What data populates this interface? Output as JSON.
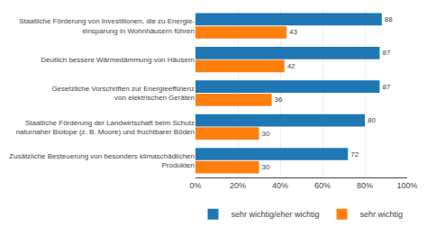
{
  "chart_data": {
    "type": "bar",
    "orientation": "horizontal",
    "categories": [
      "Staatliche Förderung von Investitionen, die zu Energie-\neinsparung in Wohnhäusern führen",
      "Deutlich bessere Wärmedämmung von Häusern",
      "Gesetzliche Vorschriften zur Energieeffizienz\nvon elektrischen Geräten",
      "Staatliche Förderung der Landwirtschaft beim Schutz\nnaturnaher Biotope (z. B. Moore) und fruchtbarer Böden",
      "Zusätzliche Besteuerung von besonders klimaschädlichen\nProdukten"
    ],
    "series": [
      {
        "name": "sehr wichtig/eher wichtig",
        "values": [
          88,
          87,
          87,
          80,
          72
        ]
      },
      {
        "name": "sehr wichtig",
        "values": [
          43,
          42,
          36,
          30,
          30
        ]
      }
    ],
    "xlim": [
      0,
      100
    ],
    "xticks": [
      {
        "value": 0,
        "label": "0%"
      },
      {
        "value": 20,
        "label": "20%"
      },
      {
        "value": 40,
        "label": "40%"
      },
      {
        "value": 60,
        "label": "60%"
      },
      {
        "value": 80,
        "label": "80%"
      },
      {
        "value": 100,
        "label": "100%"
      }
    ],
    "grid": true,
    "data_labels": true,
    "legend": "bottom"
  }
}
